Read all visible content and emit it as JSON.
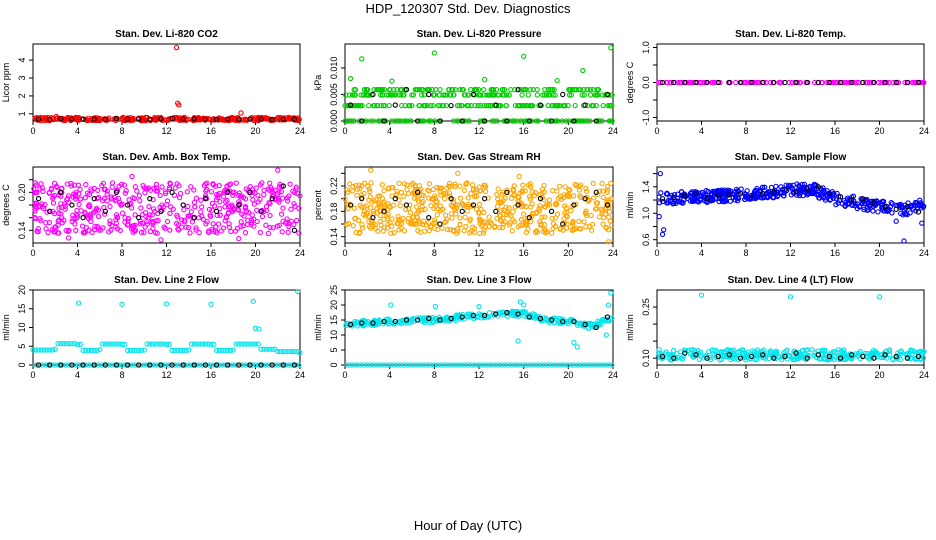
{
  "title": "HDP_120307  Std. Dev. Diagnostics",
  "xlabel": "Hour of Day (UTC)",
  "colors": {
    "axis": "#000000",
    "overlay_points": "#000000"
  },
  "chart_data": [
    {
      "type": "scatter",
      "title": "Stan. Dev. Li-820 CO2",
      "ylabel": "Licor ppm",
      "xlim": [
        0,
        24
      ],
      "ylim": [
        0.6,
        4.9
      ],
      "xticks": [
        0,
        4,
        8,
        12,
        16,
        20,
        24
      ],
      "yticks": [
        1,
        2,
        3,
        4
      ],
      "ytick_labels": [
        "1",
        "2",
        "3",
        "4"
      ],
      "color": "#ff0000",
      "x": [
        0.4,
        1.2,
        2.1,
        3.0,
        3.8,
        4.5,
        5.6,
        6.4,
        7.3,
        8.1,
        9.0,
        9.8,
        10.6,
        11.5,
        12.2,
        12.9,
        13.0,
        13.1,
        13.6,
        14.5,
        15.3,
        16.2,
        17.0,
        17.9,
        18.7,
        19.6,
        20.4,
        21.3,
        22.1,
        23.0,
        23.7
      ],
      "y": [
        0.65,
        0.75,
        0.85,
        0.7,
        0.75,
        0.7,
        0.78,
        0.7,
        0.72,
        0.8,
        0.7,
        0.74,
        0.68,
        0.78,
        0.72,
        4.7,
        1.6,
        1.5,
        0.8,
        0.7,
        0.75,
        0.68,
        0.72,
        0.8,
        1.05,
        0.7,
        0.74,
        0.68,
        0.78,
        0.8,
        0.65
      ],
      "noise": {
        "ymin": 0.62,
        "ymax": 0.8,
        "n": 260
      },
      "overlay": {
        "x": [
          0.5,
          1.5,
          2.5,
          3.5,
          4.5,
          5.5,
          6.5,
          7.5,
          8.5,
          9.5,
          10.5,
          11.5,
          12.5,
          13.5,
          14.5,
          15.5,
          16.5,
          17.5,
          18.5,
          19.5,
          20.5,
          21.5,
          22.5,
          23.5
        ],
        "y": [
          0.7,
          0.68,
          0.72,
          0.7,
          0.71,
          0.7,
          0.69,
          0.73,
          0.7,
          0.72,
          0.7,
          0.71,
          0.74,
          0.7,
          0.72,
          0.7,
          0.69,
          0.71,
          0.7,
          0.72,
          0.7,
          0.69,
          0.71,
          0.7
        ]
      }
    },
    {
      "type": "scatter",
      "title": "Stan. Dev. Li-820 Pressure",
      "ylabel": "kPa",
      "xlim": [
        0,
        24
      ],
      "ylim": [
        0,
        0.0145
      ],
      "xticks": [
        0,
        4,
        8,
        12,
        16,
        20,
        24
      ],
      "yticks": [
        0,
        0.005,
        0.01
      ],
      "ytick_labels": [
        "0.000",
        "0.005",
        "0.010"
      ],
      "color": "#00cc00",
      "x": [
        1.5,
        8.0,
        16.0,
        21.3,
        23.8,
        0.5,
        4.2,
        12.5,
        19.0
      ],
      "y": [
        0.0117,
        0.0128,
        0.0122,
        0.0095,
        0.0138,
        0.008,
        0.0075,
        0.0078,
        0.0076
      ],
      "noise": {
        "ymin": 0,
        "ymax": 0.0062,
        "n": 420,
        "levels": [
          0,
          0.0029,
          0.0049,
          0.0059
        ]
      },
      "overlay": {
        "x": [
          0.5,
          1.5,
          2.5,
          3.5,
          4.5,
          5.5,
          6.5,
          7.5,
          8.5,
          9.5,
          10.5,
          11.5,
          12.5,
          13.5,
          14.5,
          15.5,
          16.5,
          17.5,
          18.5,
          19.5,
          20.5,
          21.5,
          22.5,
          23.5
        ],
        "y": [
          0.003,
          0,
          0.005,
          0,
          0.003,
          0.0059,
          0,
          0.005,
          0,
          0.0029,
          0,
          0.005,
          0,
          0.003,
          0,
          0.0059,
          0,
          0.003,
          0,
          0.005,
          0,
          0.003,
          0,
          0.005
        ]
      }
    },
    {
      "type": "scatter",
      "title": "Stan. Dev. Li-820 Temp.",
      "ylabel": "degrees C",
      "xlim": [
        0,
        24
      ],
      "ylim": [
        -1.1,
        1.1
      ],
      "xticks": [
        0,
        4,
        8,
        12,
        16,
        20,
        24
      ],
      "yticks": [
        -1,
        -0.5,
        0,
        0.5,
        1
      ],
      "ytick_labels": [
        "-1.0",
        "",
        "0.0",
        "",
        "1.0"
      ],
      "color": "#ff00ff",
      "x": [],
      "y": [],
      "noise": {
        "ymin": 0,
        "ymax": 0,
        "n": 140
      },
      "overlay": {
        "x": [
          0.5,
          1.5,
          2.5,
          3.5,
          4.5,
          5.5,
          6.5,
          7.5,
          8.5,
          9.5,
          10.5,
          11.5,
          12.5,
          13.5,
          14.5,
          15.5,
          16.5,
          17.5,
          18.5,
          19.5,
          20.5,
          21.5,
          22.5,
          23.5
        ],
        "y": [
          0,
          0,
          0,
          0,
          0,
          0,
          0,
          0,
          0,
          0,
          0,
          0,
          0,
          0,
          0,
          0,
          0,
          0,
          0,
          0,
          0,
          0,
          0,
          0
        ]
      }
    },
    {
      "type": "scatter",
      "title": "Stan. Dev. Amb. Box Temp.",
      "ylabel": "degrees C",
      "xlim": [
        0,
        24
      ],
      "ylim": [
        0.12,
        0.24
      ],
      "xticks": [
        0,
        4,
        8,
        12,
        16,
        20,
        24
      ],
      "yticks": [
        0.14,
        0.16,
        0.18,
        0.2,
        0.22
      ],
      "ytick_labels": [
        "0.14",
        "",
        "",
        "0.20",
        ""
      ],
      "color": "#ff00ff",
      "x": [
        22.0,
        11.5,
        3.2,
        18.5,
        8.9
      ],
      "y": [
        0.235,
        0.125,
        0.128,
        0.127,
        0.225
      ],
      "noise": {
        "ymin": 0.135,
        "ymax": 0.215,
        "n": 520
      },
      "overlay": {
        "x": [
          0.5,
          1.5,
          2.5,
          3.5,
          4.5,
          5.5,
          6.5,
          7.5,
          8.5,
          9.5,
          10.5,
          11.5,
          12.5,
          13.5,
          14.5,
          15.5,
          16.5,
          17.5,
          18.5,
          19.5,
          20.5,
          21.5,
          22.5,
          23.5
        ],
        "y": [
          0.19,
          0.17,
          0.2,
          0.18,
          0.16,
          0.19,
          0.17,
          0.2,
          0.18,
          0.16,
          0.19,
          0.17,
          0.2,
          0.18,
          0.16,
          0.19,
          0.17,
          0.2,
          0.18,
          0.2,
          0.17,
          0.19,
          0.21,
          0.14
        ]
      }
    },
    {
      "type": "scatter",
      "title": "Stan. Dev. Gas Stream RH",
      "ylabel": "percent",
      "xlim": [
        0,
        24
      ],
      "ylim": [
        0.13,
        0.25
      ],
      "xticks": [
        0,
        4,
        8,
        12,
        16,
        20,
        24
      ],
      "yticks": [
        0.14,
        0.16,
        0.18,
        0.2,
        0.22,
        0.24
      ],
      "ytick_labels": [
        "0.14",
        "",
        "0.18",
        "",
        "0.22",
        ""
      ],
      "color": "#ffa500",
      "x": [
        2.3,
        15.6,
        23.6,
        10.1
      ],
      "y": [
        0.245,
        0.235,
        0.132,
        0.24
      ],
      "noise": {
        "ymin": 0.145,
        "ymax": 0.225,
        "n": 560
      },
      "overlay": {
        "x": [
          0.5,
          1.5,
          2.5,
          3.5,
          4.5,
          5.5,
          6.5,
          7.5,
          8.5,
          9.5,
          10.5,
          11.5,
          12.5,
          13.5,
          14.5,
          15.5,
          16.5,
          17.5,
          18.5,
          19.5,
          20.5,
          21.5,
          22.5,
          23.5
        ],
        "y": [
          0.19,
          0.2,
          0.17,
          0.18,
          0.2,
          0.19,
          0.21,
          0.17,
          0.16,
          0.2,
          0.18,
          0.19,
          0.2,
          0.18,
          0.21,
          0.19,
          0.17,
          0.2,
          0.18,
          0.16,
          0.19,
          0.2,
          0.21,
          0.19
        ]
      }
    },
    {
      "type": "scatter",
      "title": "Stan. Dev. Sample Flow",
      "ylabel": "ml/min",
      "xlim": [
        0,
        24
      ],
      "ylim": [
        0.55,
        1.7
      ],
      "xticks": [
        0,
        4,
        8,
        12,
        16,
        20,
        24
      ],
      "yticks": [
        0.6,
        0.8,
        1.0,
        1.2,
        1.4,
        1.6
      ],
      "ytick_labels": [
        "0.6",
        "",
        "1.0",
        "",
        "1.4",
        ""
      ],
      "color": "#0000ff",
      "x": [
        0.3,
        0.6,
        0.5,
        22.2,
        23.8,
        0.2,
        21.5
      ],
      "y": [
        1.6,
        0.75,
        0.68,
        0.58,
        0.85,
        0.95,
        0.88
      ],
      "line_points": [
        [
          0,
          1.22
        ],
        [
          4,
          1.25
        ],
        [
          8,
          1.28
        ],
        [
          12,
          1.35
        ],
        [
          14,
          1.36
        ],
        [
          16,
          1.22
        ],
        [
          20,
          1.1
        ],
        [
          22,
          1.05
        ],
        [
          24,
          1.12
        ]
      ],
      "noise": {
        "ymin": -0.09,
        "ymax": 0.09,
        "n": 460
      },
      "overlay": {
        "x": [
          0.5,
          1.5,
          2.5,
          3.5,
          4.5,
          5.5,
          6.5,
          7.5,
          8.5,
          9.5,
          10.5,
          11.5,
          12.5,
          13.5,
          14.5,
          15.5,
          16.5,
          17.5,
          18.5,
          19.5,
          20.5,
          21.5,
          22.5,
          23.5
        ],
        "y": [
          1.22,
          1.24,
          1.26,
          1.3,
          1.22,
          1.27,
          1.28,
          1.3,
          1.27,
          1.3,
          1.32,
          1.36,
          1.33,
          1.37,
          1.4,
          1.3,
          1.25,
          1.2,
          1.22,
          1.16,
          1.1,
          1.06,
          1.1,
          1.02
        ]
      }
    },
    {
      "type": "scatter",
      "title": "Stan. Dev. Line 2 Flow",
      "ylabel": "ml/min",
      "xlim": [
        0,
        24
      ],
      "ylim": [
        0,
        20
      ],
      "xticks": [
        0,
        4,
        8,
        12,
        16,
        20,
        24
      ],
      "yticks": [
        0,
        5,
        10,
        15,
        20
      ],
      "ytick_labels": [
        "0",
        "5",
        "10",
        "15",
        "20"
      ],
      "color": "#00e5ee",
      "x": [
        4.1,
        8.0,
        12.0,
        16.0,
        19.8,
        20.0,
        20.3,
        23.8
      ],
      "y": [
        16.5,
        16.2,
        16.3,
        16.2,
        17.0,
        9.8,
        9.6,
        19.6
      ],
      "steps": [
        [
          0,
          4.0
        ],
        [
          2,
          4.2
        ],
        [
          2.2,
          5.7
        ],
        [
          4.0,
          5.5
        ],
        [
          4.4,
          3.9
        ],
        [
          6,
          4.1
        ],
        [
          6.2,
          5.6
        ],
        [
          8.0,
          5.5
        ],
        [
          8.4,
          3.9
        ],
        [
          10,
          4.0
        ],
        [
          10.2,
          5.6
        ],
        [
          12.0,
          5.5
        ],
        [
          12.4,
          3.9
        ],
        [
          14,
          4.0
        ],
        [
          14.2,
          5.6
        ],
        [
          16.0,
          5.5
        ],
        [
          16.4,
          3.9
        ],
        [
          18,
          4.0
        ],
        [
          18.2,
          5.6
        ],
        [
          20.0,
          5.6
        ],
        [
          20.4,
          4.2
        ],
        [
          22.0,
          3.6
        ],
        [
          24,
          3.2
        ]
      ],
      "zero_line": true,
      "overlay": {
        "x": [
          0.5,
          1.5,
          2.5,
          3.5,
          4.5,
          5.5,
          6.5,
          7.5,
          8.5,
          9.5,
          10.5,
          11.5,
          12.5,
          13.5,
          14.5,
          15.5,
          16.5,
          17.5,
          18.5,
          19.5,
          20.5,
          21.5,
          22.5,
          23.5
        ],
        "y": [
          0,
          0,
          0,
          0,
          0,
          0,
          0,
          0,
          0,
          0,
          0,
          0,
          0,
          0,
          0,
          0,
          0,
          0,
          0,
          0,
          0,
          0,
          0,
          0
        ]
      }
    },
    {
      "type": "scatter",
      "title": "Stan. Dev. Line 3 Flow",
      "ylabel": "ml/min",
      "xlim": [
        0,
        24
      ],
      "ylim": [
        0,
        25
      ],
      "xticks": [
        0,
        4,
        8,
        12,
        16,
        20,
        24
      ],
      "yticks": [
        0,
        5,
        10,
        15,
        20,
        25
      ],
      "ytick_labels": [
        "0",
        "5",
        "10",
        "15",
        "20",
        "25"
      ],
      "color": "#00e5ee",
      "x": [
        4.1,
        8.1,
        12.0,
        15.7,
        16.0,
        15.5,
        20.5,
        23.8,
        23.6,
        23.4,
        20.8
      ],
      "y": [
        20.0,
        19.5,
        19.5,
        21.0,
        20.0,
        8.0,
        7.5,
        24.0,
        20.0,
        10.0,
        6.0
      ],
      "line_points": [
        [
          0,
          13.5
        ],
        [
          4,
          14.5
        ],
        [
          8,
          15.0
        ],
        [
          12,
          16.5
        ],
        [
          14,
          17.0
        ],
        [
          16,
          17.0
        ],
        [
          18,
          15.0
        ],
        [
          20,
          14.5
        ],
        [
          22,
          13.0
        ],
        [
          24,
          15.5
        ]
      ],
      "noise": {
        "ymin": -0.9,
        "ymax": 0.9,
        "n": 300
      },
      "zero_line": true,
      "overlay": {
        "x": [
          0.5,
          1.5,
          2.5,
          3.5,
          4.5,
          5.5,
          6.5,
          7.5,
          8.5,
          9.5,
          10.5,
          11.5,
          12.5,
          13.5,
          14.5,
          15.5,
          16.5,
          17.5,
          18.5,
          19.5,
          20.5,
          21.5,
          22.5,
          23.5
        ],
        "y": [
          13.5,
          14.0,
          14.0,
          14.5,
          14.5,
          15.0,
          15.0,
          15.5,
          15.0,
          15.5,
          16.0,
          16.5,
          16.5,
          17.0,
          17.5,
          17.0,
          16.0,
          15.5,
          15.0,
          14.5,
          14.5,
          13.5,
          12.5,
          16.0
        ]
      }
    },
    {
      "type": "scatter",
      "title": "Stan. Dev. Line 4 (LT) Flow",
      "ylabel": "ml/min",
      "xlim": [
        0,
        24
      ],
      "ylim": [
        0.08,
        0.3
      ],
      "xticks": [
        0,
        4,
        8,
        12,
        16,
        20,
        24
      ],
      "yticks": [
        0.1,
        0.15,
        0.2,
        0.25
      ],
      "ytick_labels": [
        "0.10",
        "",
        "",
        "0.25"
      ],
      "color": "#00e5ee",
      "x": [
        4.0,
        12.0,
        20.0
      ],
      "y": [
        0.285,
        0.28,
        0.28
      ],
      "noise": {
        "ymin": 0.095,
        "ymax": 0.125,
        "n": 330
      },
      "overlay": {
        "x": [
          0.5,
          1.5,
          2.5,
          3.5,
          4.5,
          5.5,
          6.5,
          7.5,
          8.5,
          9.5,
          10.5,
          11.5,
          12.5,
          13.5,
          14.5,
          15.5,
          16.5,
          17.5,
          18.5,
          19.5,
          20.5,
          21.5,
          22.5,
          23.5
        ],
        "y": [
          0.105,
          0.1,
          0.115,
          0.11,
          0.1,
          0.105,
          0.11,
          0.1,
          0.105,
          0.11,
          0.1,
          0.105,
          0.115,
          0.1,
          0.11,
          0.105,
          0.1,
          0.11,
          0.105,
          0.1,
          0.11,
          0.105,
          0.1,
          0.105
        ]
      }
    }
  ]
}
